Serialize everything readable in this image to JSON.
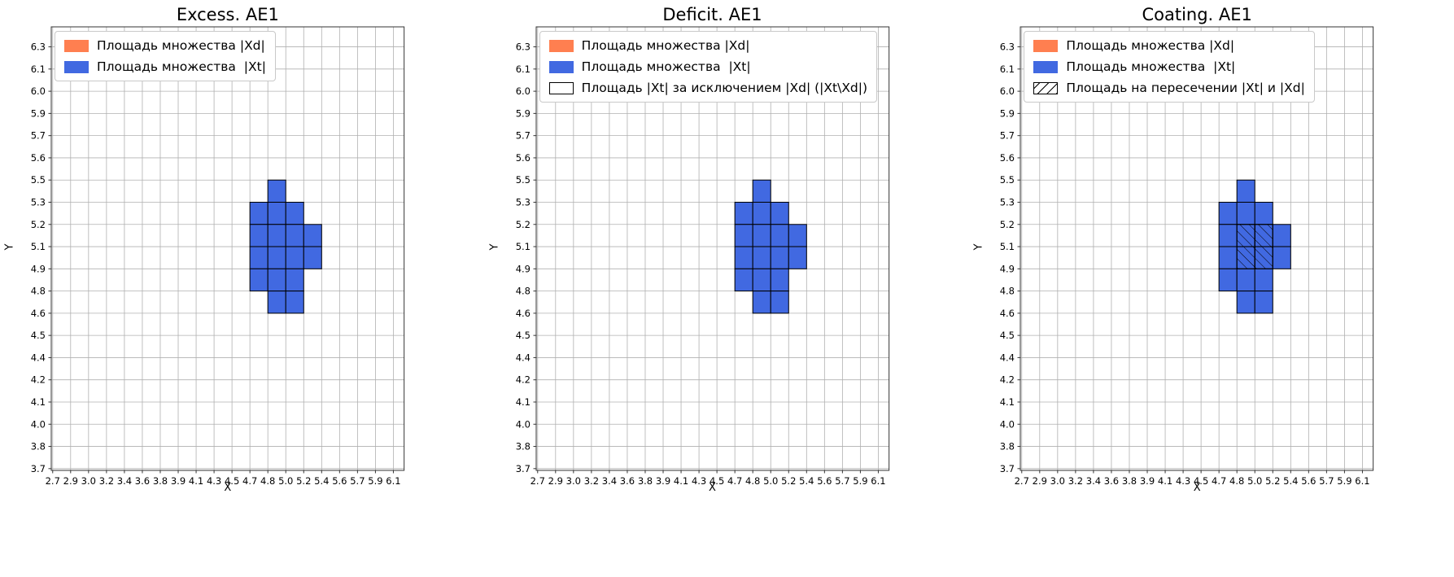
{
  "figure": {
    "background": "#ffffff",
    "axis_color": "#333333",
    "grid_color": "#b0b0b0",
    "tick_color": "#333333"
  },
  "colors": {
    "xd_fill": "#ff7f50",
    "xt_fill": "#4169e1",
    "cell_edge": "#000000",
    "hatch": "#000000"
  },
  "chart_data": [
    {
      "type": "heatmap",
      "title": "Excess. AE1",
      "xlabel": "X",
      "ylabel": "Y",
      "grid": true,
      "legend_position": "upper-left",
      "x_ticks": [
        "2.7",
        "2.9",
        "3.0",
        "3.2",
        "3.4",
        "3.6",
        "3.8",
        "3.9",
        "4.1",
        "4.3",
        "4.5",
        "4.7",
        "4.8",
        "5.0",
        "5.2",
        "5.4",
        "5.6",
        "5.7",
        "5.9",
        "6.1"
      ],
      "y_ticks": [
        "3.7",
        "3.8",
        "4.0",
        "4.1",
        "4.2",
        "4.4",
        "4.5",
        "4.6",
        "4.8",
        "4.9",
        "5.1",
        "5.2",
        "5.3",
        "5.5",
        "5.6",
        "5.7",
        "5.9",
        "6.0",
        "6.1",
        "6.3"
      ],
      "legend": [
        {
          "label": "Площадь множества |Xd|",
          "swatch": "solid",
          "color": "#ff7f50"
        },
        {
          "label": "Площадь множества  |Xt|",
          "swatch": "solid",
          "color": "#4169e1"
        }
      ],
      "xt_cells": [
        [
          12,
          12
        ],
        [
          11,
          11
        ],
        [
          12,
          11
        ],
        [
          13,
          11
        ],
        [
          11,
          10
        ],
        [
          12,
          10
        ],
        [
          13,
          10
        ],
        [
          14,
          10
        ],
        [
          11,
          9
        ],
        [
          12,
          9
        ],
        [
          13,
          9
        ],
        [
          14,
          9
        ],
        [
          11,
          8
        ],
        [
          12,
          8
        ],
        [
          13,
          8
        ],
        [
          12,
          7
        ],
        [
          13,
          7
        ]
      ],
      "intersection_cells": []
    },
    {
      "type": "heatmap",
      "title": "Deficit. AE1",
      "xlabel": "X",
      "ylabel": "Y",
      "grid": true,
      "legend_position": "upper-left",
      "x_ticks": [
        "2.7",
        "2.9",
        "3.0",
        "3.2",
        "3.4",
        "3.6",
        "3.8",
        "3.9",
        "4.1",
        "4.3",
        "4.5",
        "4.7",
        "4.8",
        "5.0",
        "5.2",
        "5.4",
        "5.6",
        "5.7",
        "5.9",
        "6.1"
      ],
      "y_ticks": [
        "3.7",
        "3.8",
        "4.0",
        "4.1",
        "4.2",
        "4.4",
        "4.5",
        "4.6",
        "4.8",
        "4.9",
        "5.1",
        "5.2",
        "5.3",
        "5.5",
        "5.6",
        "5.7",
        "5.9",
        "6.0",
        "6.1",
        "6.3"
      ],
      "legend": [
        {
          "label": "Площадь множества |Xd|",
          "swatch": "solid",
          "color": "#ff7f50"
        },
        {
          "label": "Площадь множества  |Xt|",
          "swatch": "solid",
          "color": "#4169e1"
        },
        {
          "label": "Площадь |Xt| за исключением |Xd| (|Xt\\Xd|)",
          "swatch": "empty"
        }
      ],
      "xt_cells": [
        [
          12,
          12
        ],
        [
          11,
          11
        ],
        [
          12,
          11
        ],
        [
          13,
          11
        ],
        [
          11,
          10
        ],
        [
          12,
          10
        ],
        [
          13,
          10
        ],
        [
          14,
          10
        ],
        [
          11,
          9
        ],
        [
          12,
          9
        ],
        [
          13,
          9
        ],
        [
          14,
          9
        ],
        [
          11,
          8
        ],
        [
          12,
          8
        ],
        [
          13,
          8
        ],
        [
          12,
          7
        ],
        [
          13,
          7
        ]
      ],
      "intersection_cells": []
    },
    {
      "type": "heatmap",
      "title": "Coating. AE1",
      "xlabel": "X",
      "ylabel": "Y",
      "grid": true,
      "legend_position": "upper-left",
      "x_ticks": [
        "2.7",
        "2.9",
        "3.0",
        "3.2",
        "3.4",
        "3.6",
        "3.8",
        "3.9",
        "4.1",
        "4.3",
        "4.5",
        "4.7",
        "4.8",
        "5.0",
        "5.2",
        "5.4",
        "5.6",
        "5.7",
        "5.9",
        "6.1"
      ],
      "y_ticks": [
        "3.7",
        "3.8",
        "4.0",
        "4.1",
        "4.2",
        "4.4",
        "4.5",
        "4.6",
        "4.8",
        "4.9",
        "5.1",
        "5.2",
        "5.3",
        "5.5",
        "5.6",
        "5.7",
        "5.9",
        "6.0",
        "6.1",
        "6.3"
      ],
      "legend": [
        {
          "label": "Площадь множества |Xd|",
          "swatch": "solid",
          "color": "#ff7f50"
        },
        {
          "label": "Площадь множества  |Xt|",
          "swatch": "solid",
          "color": "#4169e1"
        },
        {
          "label": "Площадь на пересечении |Xt| и |Xd|",
          "swatch": "hatch"
        }
      ],
      "xt_cells": [
        [
          12,
          12
        ],
        [
          11,
          11
        ],
        [
          12,
          11
        ],
        [
          13,
          11
        ],
        [
          11,
          10
        ],
        [
          12,
          10
        ],
        [
          13,
          10
        ],
        [
          14,
          10
        ],
        [
          11,
          9
        ],
        [
          12,
          9
        ],
        [
          13,
          9
        ],
        [
          14,
          9
        ],
        [
          11,
          8
        ],
        [
          12,
          8
        ],
        [
          13,
          8
        ],
        [
          12,
          7
        ],
        [
          13,
          7
        ]
      ],
      "intersection_cells": [
        [
          12,
          10
        ],
        [
          13,
          10
        ],
        [
          12,
          9
        ],
        [
          13,
          9
        ]
      ]
    }
  ]
}
